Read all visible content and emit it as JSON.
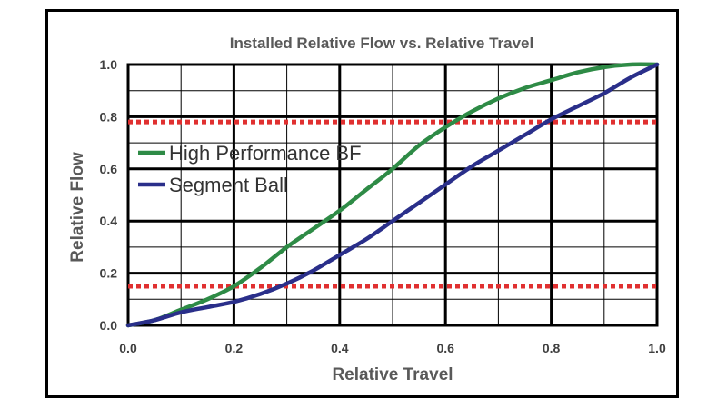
{
  "chart_data": {
    "type": "line",
    "title": "Installed Relative Flow vs. Relative Travel",
    "xlabel": "Relative Travel",
    "ylabel": "Relative Flow",
    "xlim": [
      0,
      1
    ],
    "ylim": [
      0,
      1
    ],
    "x_ticks": [
      "0.0",
      "0.2",
      "0.4",
      "0.6",
      "0.8",
      "1.0"
    ],
    "y_ticks": [
      "0.0",
      "0.2",
      "0.4",
      "0.6",
      "0.8",
      "1.0"
    ],
    "grid": true,
    "legend_position": "left",
    "series": [
      {
        "name": "High Performance BF",
        "color": "#2e8b46",
        "x": [
          0,
          0.05,
          0.1,
          0.15,
          0.2,
          0.25,
          0.3,
          0.35,
          0.4,
          0.45,
          0.5,
          0.55,
          0.6,
          0.65,
          0.7,
          0.75,
          0.8,
          0.85,
          0.9,
          0.95,
          1.0
        ],
        "y": [
          0,
          0.02,
          0.06,
          0.1,
          0.15,
          0.22,
          0.3,
          0.37,
          0.44,
          0.52,
          0.6,
          0.69,
          0.76,
          0.82,
          0.87,
          0.91,
          0.94,
          0.97,
          0.99,
          1.0,
          1.0
        ]
      },
      {
        "name": "Segment Ball",
        "color": "#2a2f8a",
        "x": [
          0,
          0.05,
          0.1,
          0.15,
          0.2,
          0.25,
          0.3,
          0.35,
          0.4,
          0.45,
          0.5,
          0.55,
          0.6,
          0.65,
          0.7,
          0.75,
          0.8,
          0.85,
          0.9,
          0.95,
          1.0
        ],
        "y": [
          0,
          0.02,
          0.05,
          0.07,
          0.09,
          0.12,
          0.16,
          0.21,
          0.27,
          0.33,
          0.4,
          0.47,
          0.54,
          0.61,
          0.67,
          0.73,
          0.79,
          0.84,
          0.89,
          0.95,
          1.0
        ]
      }
    ],
    "reference_lines": [
      {
        "y": 0.78,
        "color": "#e03030",
        "style": "dotted"
      },
      {
        "y": 0.15,
        "color": "#e03030",
        "style": "dotted"
      }
    ]
  }
}
